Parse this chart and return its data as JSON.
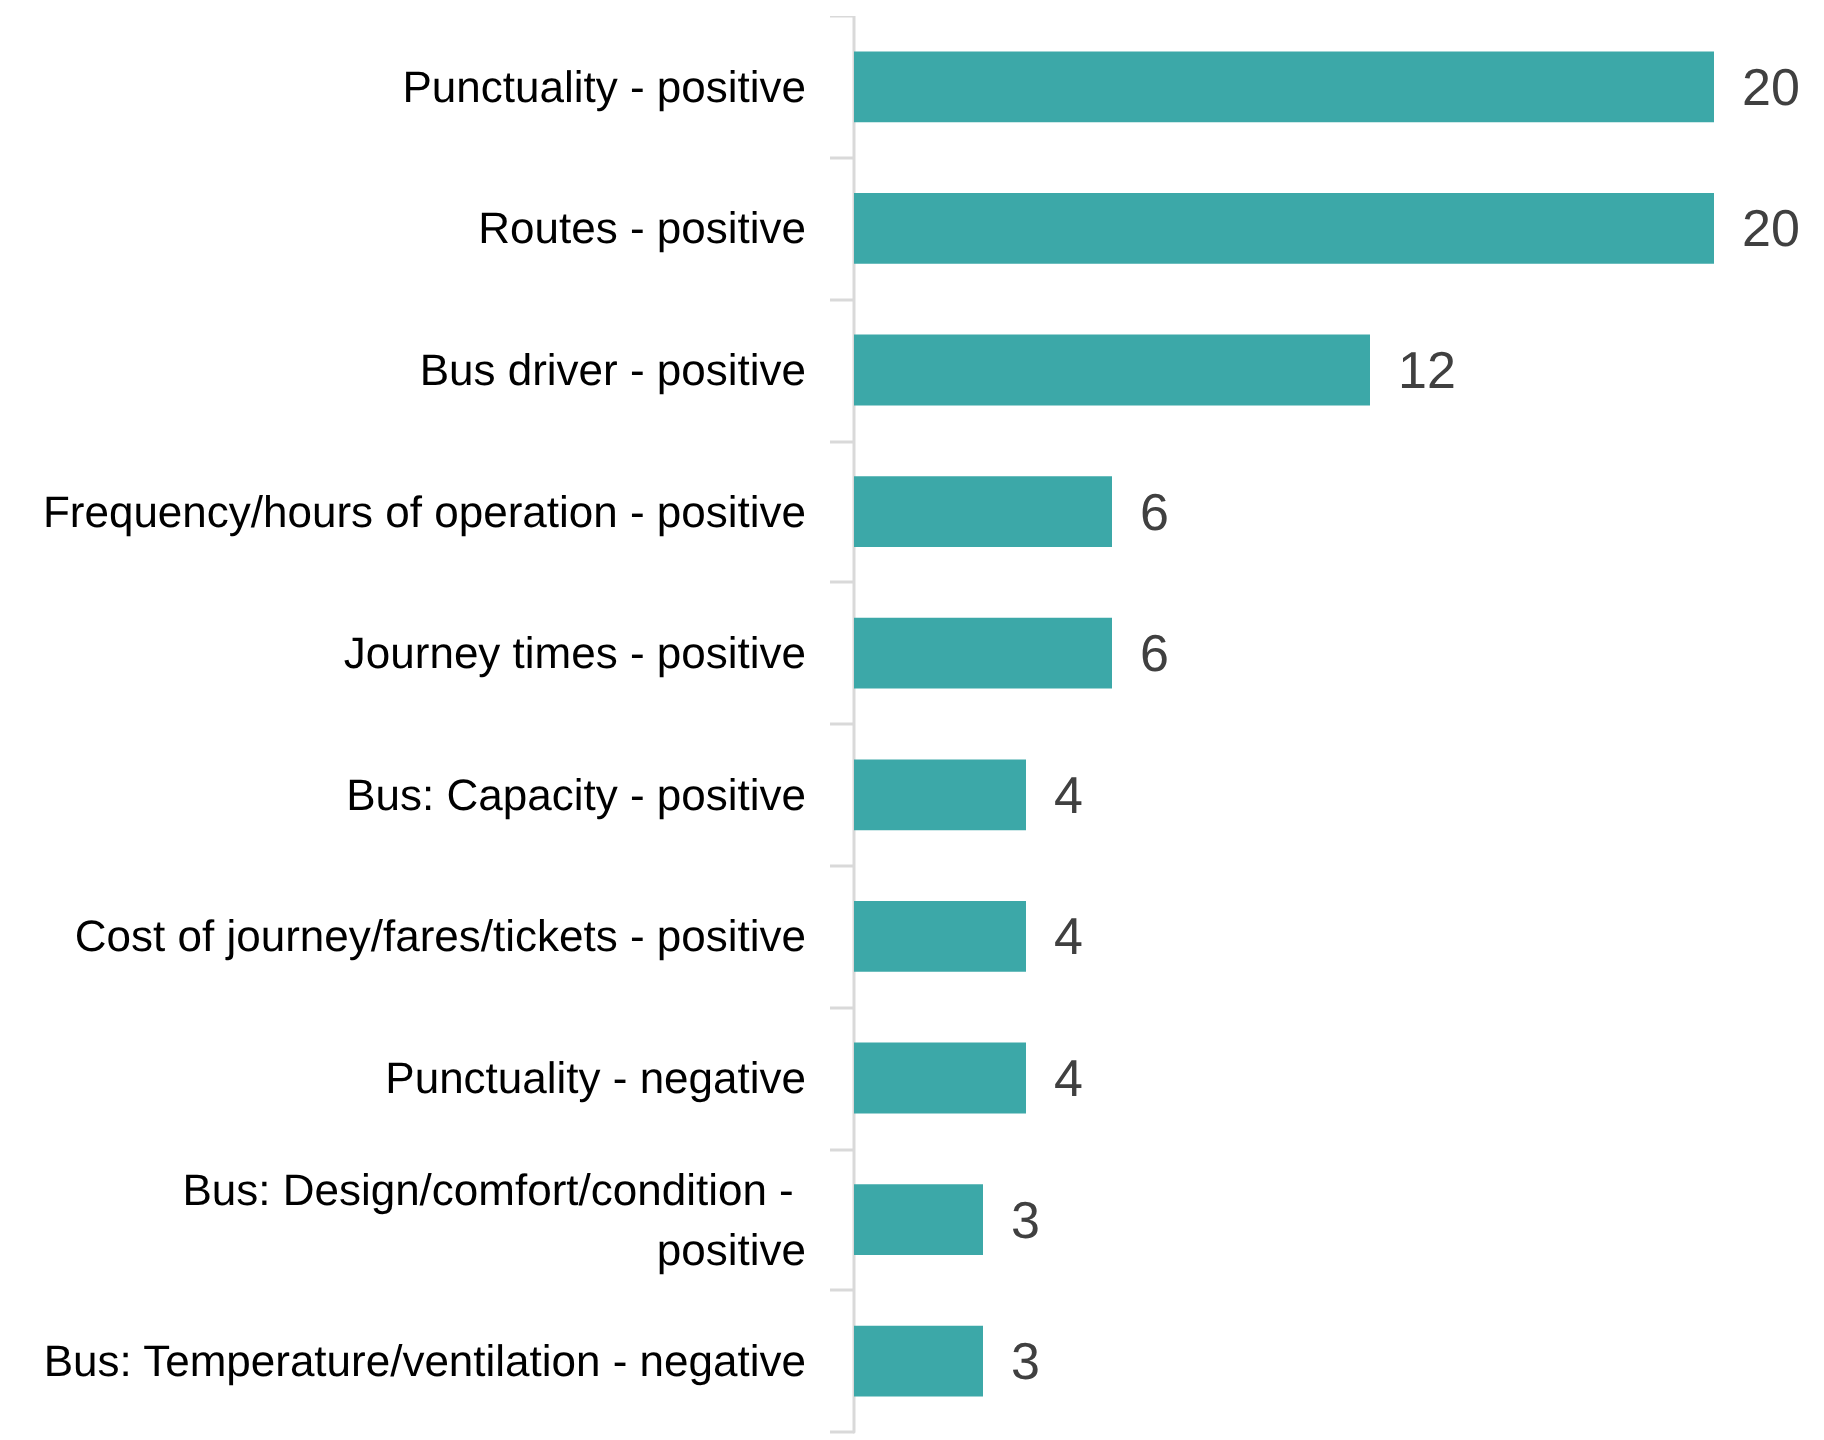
{
  "chart_data": {
    "type": "bar",
    "orientation": "horizontal",
    "categories": [
      "Punctuality - positive",
      "Routes - positive",
      "Bus driver - positive",
      "Frequency/hours of operation - positive",
      "Journey times - positive",
      "Bus: Capacity - positive",
      "Cost of journey/fares/tickets - positive",
      "Punctuality - negative",
      "Bus: Design/comfort/condition - positive",
      "Bus: Temperature/ventilation - negative"
    ],
    "values": [
      20,
      20,
      12,
      6,
      6,
      4,
      4,
      4,
      3,
      3
    ],
    "color": "#3ca8a8",
    "data_labels": true,
    "tick_labels": "y"
  }
}
